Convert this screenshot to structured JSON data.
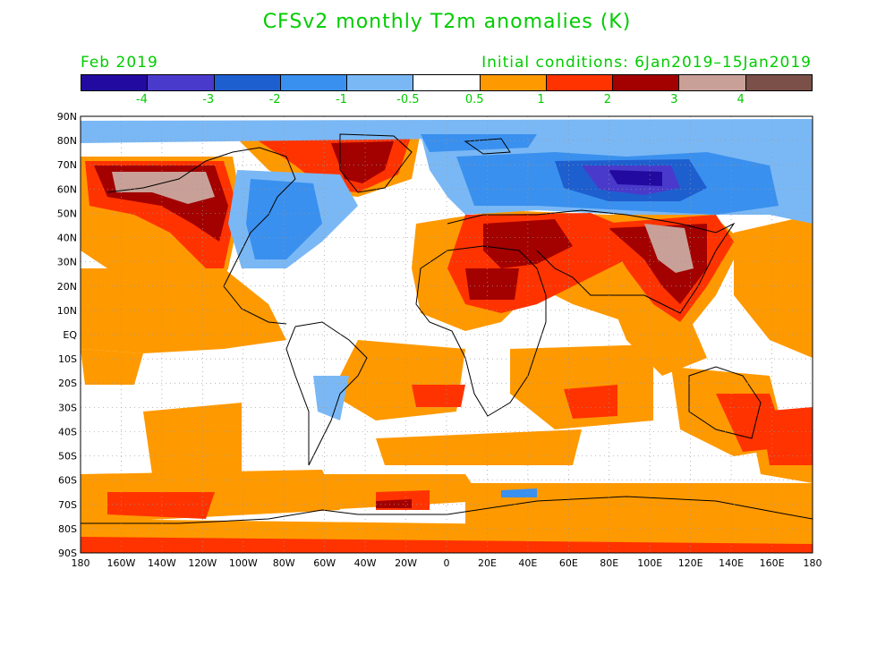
{
  "title": "CFSv2 monthly T2m anomalies (K)",
  "valid_month": "Feb 2019",
  "initial_conditions": "Initial conditions: 6Jan2019–15Jan2019",
  "legend": {
    "colors": [
      "#220aa0",
      "#4a3acb",
      "#1e5fd0",
      "#3a90ee",
      "#7ab8f5",
      "#ffffff",
      "#ff9900",
      "#ff3300",
      "#a30000",
      "#c8a098",
      "#7a5048"
    ],
    "labels": [
      "-4",
      "-3",
      "-2",
      "-1",
      "-0.5",
      "0.5",
      "1",
      "2",
      "3",
      "4"
    ]
  },
  "axes": {
    "lat_labels": [
      "90N",
      "80N",
      "70N",
      "60N",
      "50N",
      "40N",
      "30N",
      "20N",
      "10N",
      "EQ",
      "10S",
      "20S",
      "30S",
      "40S",
      "50S",
      "60S",
      "70S",
      "80S",
      "90S"
    ],
    "lon_labels": [
      "180",
      "160W",
      "140W",
      "120W",
      "100W",
      "80W",
      "60W",
      "40W",
      "20W",
      "0",
      "20E",
      "40E",
      "60E",
      "80E",
      "100E",
      "120E",
      "140E",
      "160E",
      "180"
    ]
  }
}
